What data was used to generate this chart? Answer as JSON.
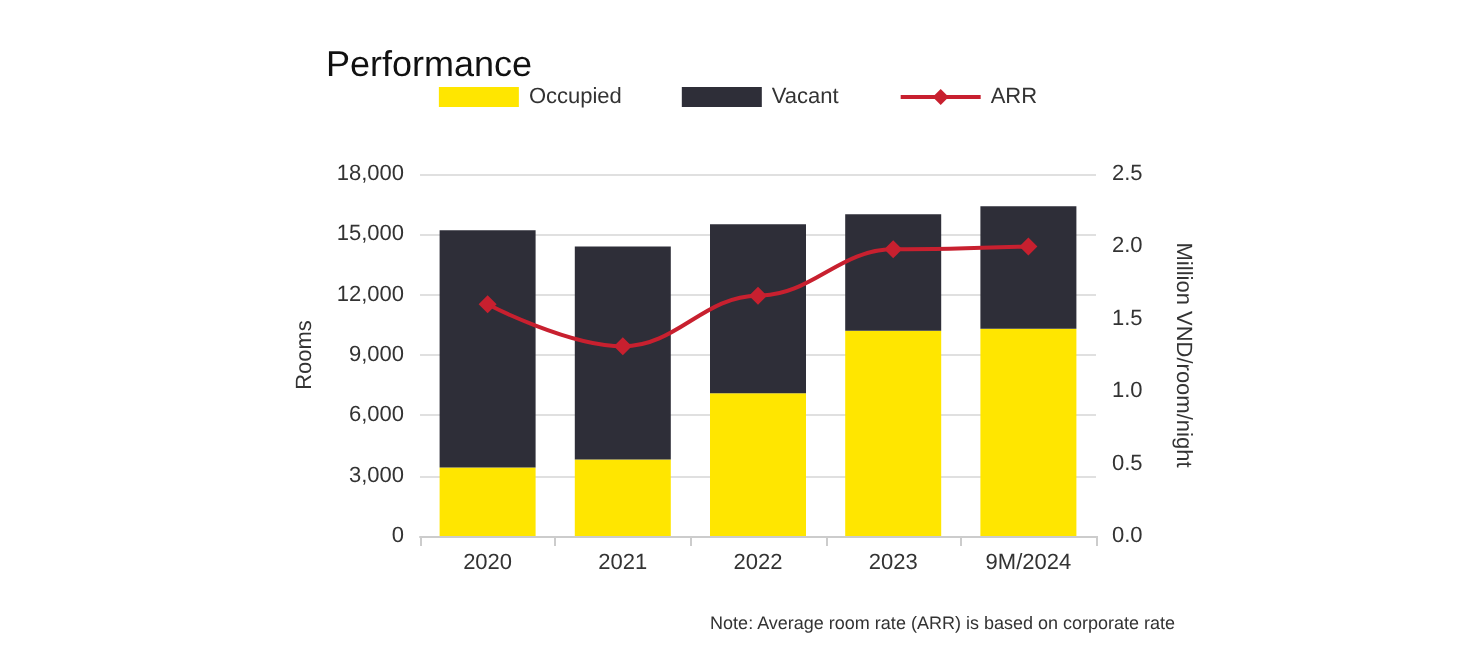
{
  "chart_data": {
    "type": "bar",
    "title": "Performance",
    "ylabel": "Rooms",
    "y2label": "Million VND/room/night",
    "categories": [
      "2020",
      "2021",
      "2022",
      "2023",
      "9M/2024"
    ],
    "stacked": true,
    "series": [
      {
        "name": "Occupied",
        "color": "#ffe600",
        "values": [
          3400,
          3800,
          7100,
          10200,
          10300
        ]
      },
      {
        "name": "Vacant",
        "color": "#2e2e38",
        "values": [
          11800,
          10600,
          8400,
          5800,
          6100
        ]
      },
      {
        "name": "ARR",
        "type": "line",
        "axis": "y2",
        "color": "#c8202f",
        "marker": "diamond",
        "line_style": "solid",
        "values": [
          1.6,
          1.31,
          1.66,
          1.98,
          2.0
        ]
      }
    ],
    "ylim": [
      0,
      18000
    ],
    "yticks": [
      0,
      {
        "value": 3000,
        "label": "3,000"
      },
      {
        "value": 6000,
        "label": "6,000"
      },
      {
        "value": 9000,
        "label": "9,000"
      },
      {
        "value": 12000,
        "label": "12,000"
      },
      {
        "value": 15000,
        "label": "15,000"
      },
      {
        "value": 18000,
        "label": "18,000"
      }
    ],
    "y2lim": [
      0,
      2.5
    ],
    "y2ticks": [
      {
        "value": 0,
        "label": "0.0"
      },
      0.5,
      {
        "value": 1,
        "label": "1.0"
      },
      1.5,
      {
        "value": 2,
        "label": "2.0"
      },
      2.5
    ],
    "grid": "y",
    "legend": "top",
    "annotations": [
      "Note: Average room rate (ARR) is based on corporate rate"
    ]
  }
}
